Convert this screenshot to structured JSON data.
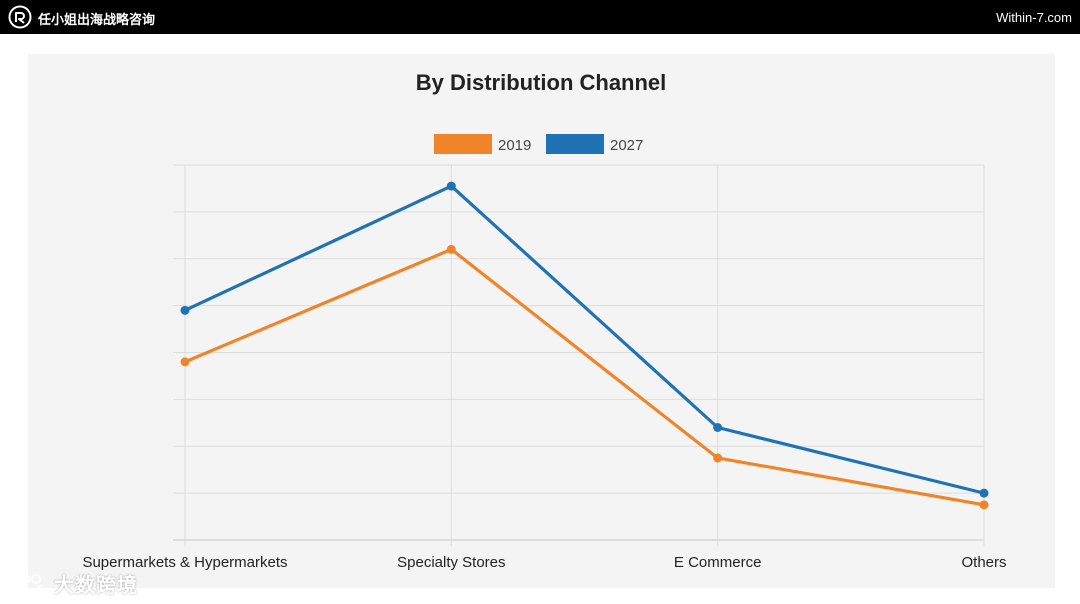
{
  "header": {
    "brand_name": "任小姐出海战略咨询",
    "site_url": "Within-7.com"
  },
  "watermark": {
    "text": "大数跨境"
  },
  "colors": {
    "series_2019": "#f0842a",
    "series_2027": "#1f72b4",
    "grid": "#dcdcdc",
    "panel_bg": "#f4f4f4"
  },
  "chart_data": {
    "type": "line",
    "title": "By Distribution Channel",
    "categories": [
      "Supermarkets & Hypermarkets",
      "Specialty Stores",
      "E Commerce",
      "Others"
    ],
    "series": [
      {
        "name": "2019",
        "values": [
          38,
          62,
          17.5,
          7.5
        ]
      },
      {
        "name": "2027",
        "values": [
          49,
          75.5,
          24,
          10
        ]
      }
    ],
    "ylim": [
      0,
      80
    ],
    "grid": true,
    "legend_position": "top-center",
    "xlabel": "",
    "ylabel": ""
  }
}
